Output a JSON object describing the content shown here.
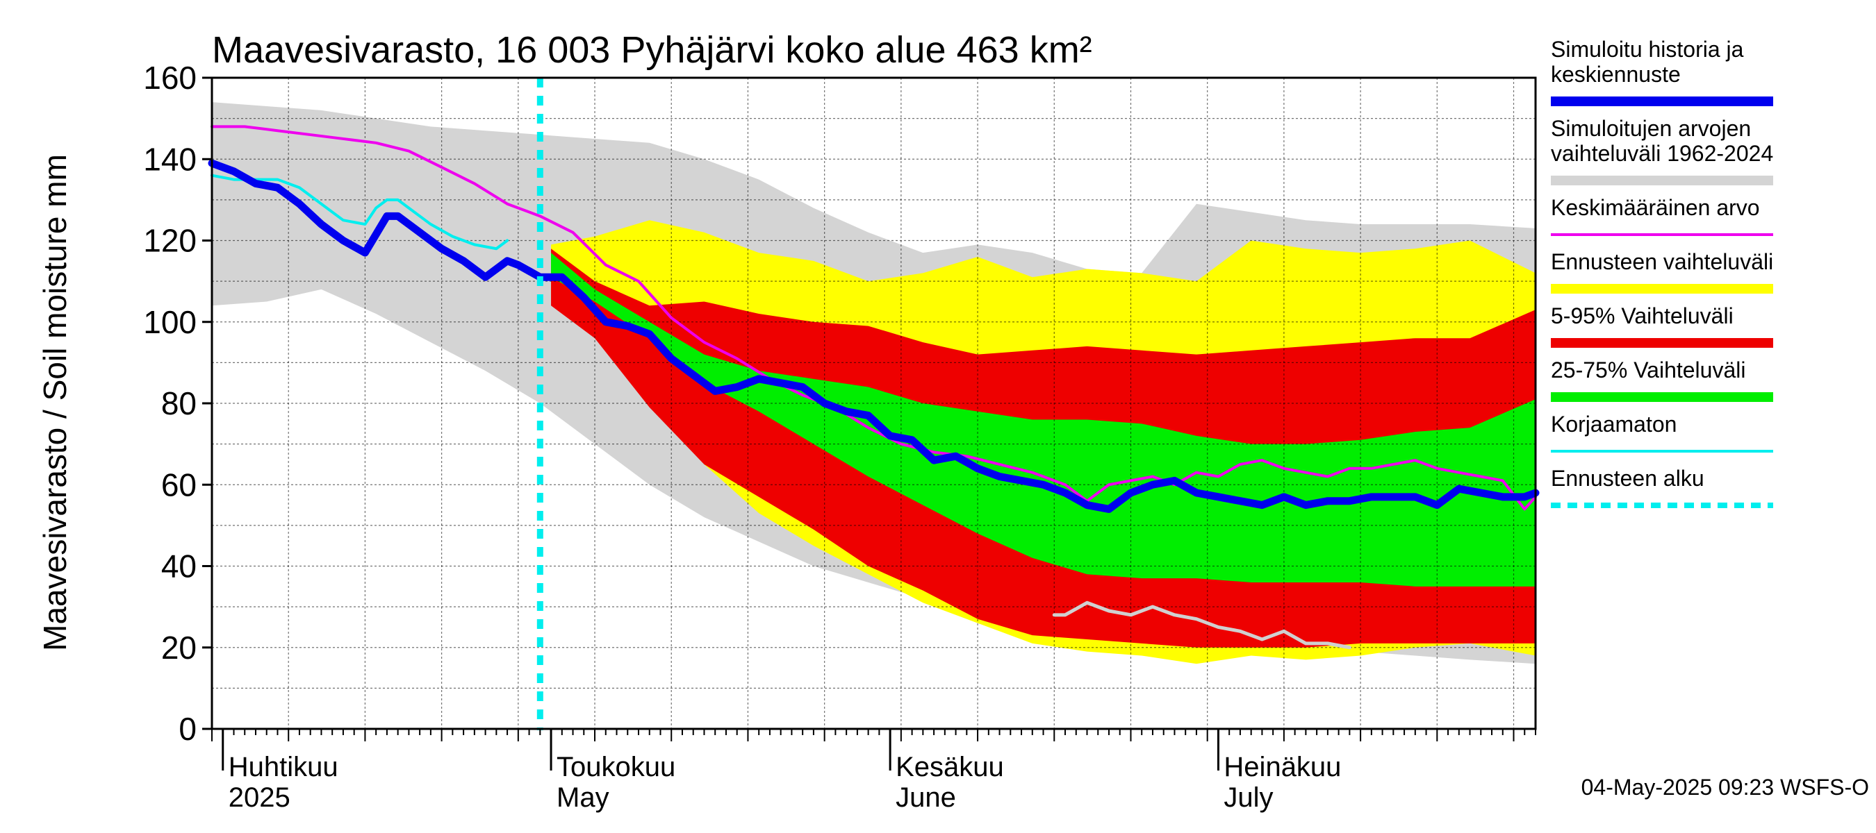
{
  "chart_data": {
    "type": "area",
    "title": "Maavesivarasto, 16 003 Pyhäjärvi koko alue 463 km²",
    "ylabel": "Maavesivarasto / Soil moisture   mm",
    "ylim": [
      0,
      160
    ],
    "yticks": [
      "0",
      "20",
      "40",
      "60",
      "80",
      "100",
      "120",
      "140",
      "160"
    ],
    "x_month_labels": [
      {
        "fi": "Huhtikuu",
        "en": "2025",
        "day": 1
      },
      {
        "fi": "Toukokuu",
        "en": "May",
        "day": 31
      },
      {
        "fi": "Kesäkuu",
        "en": "June",
        "day": 62
      },
      {
        "fi": "Heinäkuu",
        "en": "July",
        "day": 92
      }
    ],
    "x_range_days": [
      0,
      121
    ],
    "forecast_start_day": 30,
    "footer": "04-May-2025 09:23 WSFS-O",
    "colors": {
      "history": "#0000ee",
      "range_all": "#d4d4d4",
      "mean": "#ee00ee",
      "forecast_range": "#ffff00",
      "p5_95": "#ee0000",
      "p25_75": "#00ee00",
      "uncorrected": "#00eeee",
      "forecast_start": "#00eeee"
    },
    "legend": [
      {
        "label": "Simuloitu historia ja keskiennuste",
        "color": "#0000ee",
        "style": "thick"
      },
      {
        "label": "Simuloitujen arvojen vaihteluväli 1962-2024",
        "color": "#d4d4d4",
        "style": "band"
      },
      {
        "label": "Keskimääräinen arvo",
        "color": "#ee00ee",
        "style": "thin"
      },
      {
        "label": "Ennusteen vaihteluväli",
        "color": "#ffff00",
        "style": "band"
      },
      {
        "label": "5-95% Vaihteluväli",
        "color": "#ee0000",
        "style": "band"
      },
      {
        "label": "25-75% Vaihteluväli",
        "color": "#00ee00",
        "style": "band"
      },
      {
        "label": "Korjaamaton",
        "color": "#00eeee",
        "style": "thin"
      },
      {
        "label": "Ennusteen alku",
        "color": "#00eeee",
        "style": "dashed"
      }
    ],
    "series": {
      "range_all": {
        "x": [
          0,
          5,
          10,
          15,
          20,
          25,
          30,
          35,
          40,
          45,
          50,
          55,
          60,
          65,
          70,
          75,
          80,
          85,
          90,
          95,
          100,
          105,
          110,
          115,
          121
        ],
        "lo": [
          104,
          105,
          108,
          102,
          95,
          88,
          80,
          70,
          60,
          52,
          46,
          40,
          36,
          32,
          28,
          24,
          22,
          21,
          20,
          20,
          20,
          19,
          18,
          17,
          16
        ],
        "hi": [
          154,
          153,
          152,
          150,
          148,
          147,
          146,
          145,
          144,
          140,
          135,
          128,
          122,
          117,
          119,
          117,
          113,
          112,
          129,
          127,
          125,
          124,
          124,
          124,
          123
        ]
      },
      "forecast_range": {
        "x": [
          31,
          35,
          40,
          45,
          50,
          55,
          60,
          65,
          70,
          75,
          80,
          85,
          90,
          95,
          100,
          105,
          110,
          115,
          121
        ],
        "lo": [
          106,
          98,
          82,
          65,
          53,
          45,
          38,
          31,
          26,
          21,
          19,
          18,
          16,
          18,
          17,
          18,
          20,
          21,
          18
        ],
        "hi": [
          119,
          121,
          125,
          122,
          117,
          115,
          110,
          112,
          116,
          111,
          113,
          112,
          110,
          120,
          118,
          117,
          118,
          120,
          112
        ]
      },
      "p5_95": {
        "x": [
          31,
          35,
          40,
          45,
          50,
          55,
          60,
          65,
          70,
          75,
          80,
          85,
          90,
          95,
          100,
          105,
          110,
          115,
          121
        ],
        "lo": [
          104,
          96,
          79,
          65,
          57,
          49,
          40,
          34,
          27,
          23,
          22,
          21,
          20,
          20,
          20,
          21,
          21,
          21,
          21
        ],
        "hi": [
          118,
          110,
          104,
          105,
          102,
          100,
          99,
          95,
          92,
          93,
          94,
          93,
          92,
          93,
          94,
          95,
          96,
          96,
          103
        ]
      },
      "p25_75": {
        "x": [
          31,
          35,
          40,
          45,
          50,
          55,
          60,
          65,
          70,
          75,
          80,
          85,
          90,
          95,
          100,
          105,
          110,
          115,
          121
        ],
        "lo": [
          111,
          105,
          96,
          85,
          78,
          70,
          62,
          55,
          48,
          42,
          38,
          37,
          37,
          36,
          36,
          36,
          35,
          35,
          35
        ],
        "hi": [
          117,
          108,
          100,
          92,
          88,
          86,
          84,
          80,
          78,
          76,
          76,
          75,
          72,
          70,
          70,
          71,
          73,
          74,
          81
        ]
      },
      "history": {
        "x": [
          0,
          2,
          4,
          6,
          8,
          10,
          12,
          14,
          16,
          17,
          19,
          21,
          23,
          25,
          27,
          28,
          30,
          32,
          34,
          36,
          38,
          40,
          42,
          44,
          46,
          48,
          50,
          52,
          54,
          56,
          58,
          60,
          62,
          64,
          66,
          68,
          70,
          72,
          74,
          76,
          78,
          80,
          82,
          84,
          86,
          88,
          90,
          92,
          94,
          96,
          98,
          100,
          102,
          104,
          106,
          108,
          110,
          112,
          114,
          116,
          118,
          120,
          121
        ],
        "y": [
          139,
          137,
          134,
          133,
          129,
          124,
          120,
          117,
          126,
          126,
          122,
          118,
          115,
          111,
          115,
          114,
          111,
          111,
          106,
          100,
          99,
          97,
          91,
          87,
          83,
          84,
          86,
          85,
          84,
          80,
          78,
          77,
          72,
          71,
          66,
          67,
          64,
          62,
          61,
          60,
          58,
          55,
          54,
          58,
          60,
          61,
          58,
          57,
          56,
          55,
          57,
          55,
          56,
          56,
          57,
          57,
          57,
          55,
          59,
          58,
          57,
          57,
          58
        ]
      },
      "mean": {
        "x": [
          0,
          3,
          6,
          9,
          12,
          15,
          18,
          21,
          24,
          27,
          30,
          33,
          36,
          39,
          42,
          45,
          48,
          51,
          54,
          57,
          60,
          63,
          66,
          69,
          72,
          75,
          78,
          80,
          82,
          84,
          86,
          88,
          90,
          92,
          94,
          96,
          98,
          100,
          102,
          104,
          106,
          108,
          110,
          112,
          114,
          116,
          118,
          120,
          121
        ],
        "y": [
          148,
          148,
          147,
          146,
          145,
          144,
          142,
          138,
          134,
          129,
          126,
          122,
          114,
          110,
          101,
          95,
          91,
          86,
          82,
          79,
          74,
          70,
          68,
          67,
          65,
          63,
          60,
          56,
          60,
          61,
          62,
          60,
          63,
          62,
          65,
          66,
          64,
          63,
          62,
          64,
          64,
          65,
          66,
          64,
          63,
          62,
          61,
          54,
          57
        ]
      },
      "uncorrected": {
        "x": [
          0,
          2,
          4,
          6,
          8,
          10,
          12,
          14,
          15,
          16,
          17,
          18,
          20,
          22,
          24,
          26,
          27
        ],
        "y": [
          136,
          135,
          135,
          135,
          133,
          129,
          125,
          124,
          128,
          130,
          130,
          128,
          124,
          121,
          119,
          118,
          120
        ]
      },
      "uncorrected_late": {
        "x": [
          77,
          78,
          80,
          82,
          84,
          86,
          88,
          90,
          92,
          94,
          96,
          97,
          98,
          100,
          102,
          104
        ],
        "y": [
          28,
          28,
          31,
          29,
          28,
          30,
          28,
          27,
          25,
          24,
          22,
          23,
          24,
          21,
          21,
          20
        ]
      }
    }
  }
}
